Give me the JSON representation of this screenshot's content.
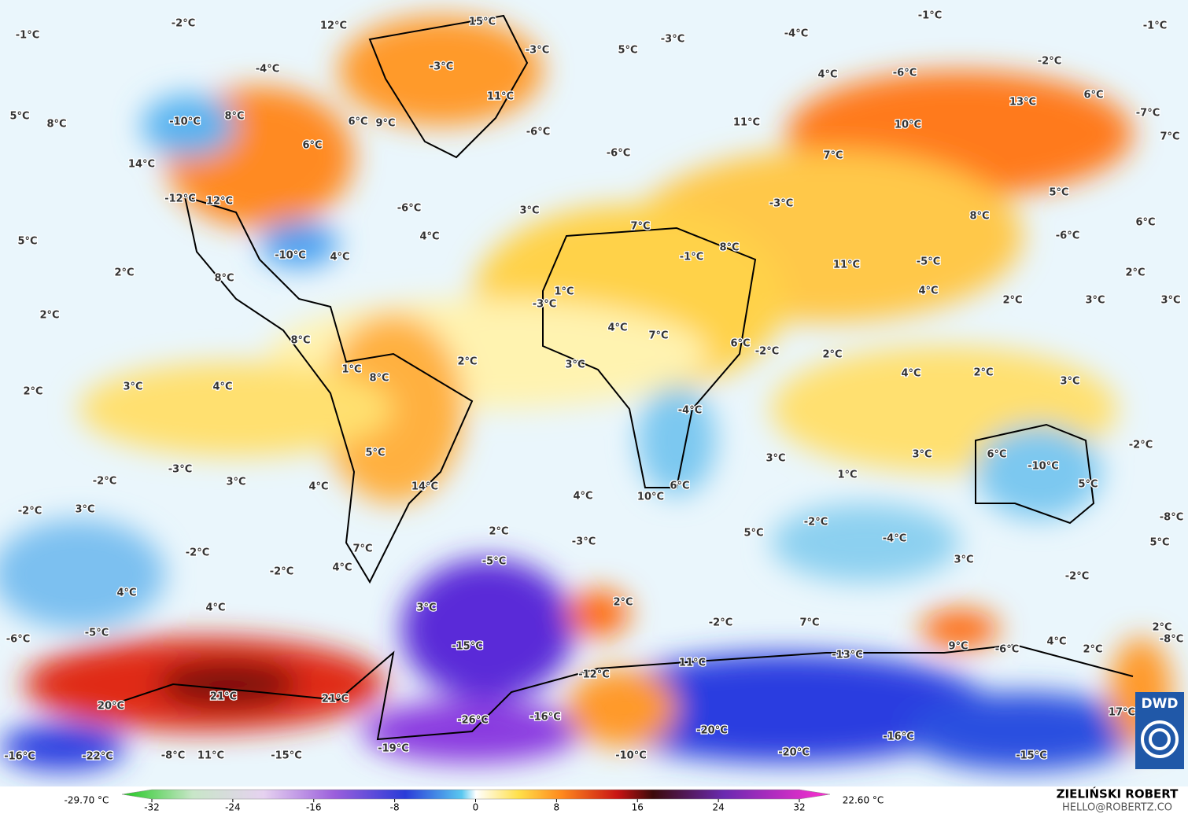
{
  "map": {
    "temperature_labels": [
      "-1°C",
      "-2°C",
      "12°C",
      "15°C",
      "-1°C",
      "-1°C",
      "-4°C",
      "-3°C",
      "-3°C",
      "5°C",
      "-3°C",
      "-4°C",
      "4°C",
      "-2°C",
      "-6°C",
      "5°C",
      "8°C",
      "-10°C",
      "8°C",
      "6°C",
      "9°C",
      "11°C",
      "-6°C",
      "11°C",
      "13°C",
      "6°C",
      "-7°C",
      "10°C",
      "7°C",
      "14°C",
      "6°C",
      "-6°C",
      "7°C",
      "-12°C",
      "12°C",
      "-6°C",
      "3°C",
      "-3°C",
      "5°C",
      "8°C",
      "6°C",
      "5°C",
      "4°C",
      "7°C",
      "8°C",
      "-10°C",
      "4°C",
      "-1°C",
      "-6°C",
      "-5°C",
      "11°C",
      "2°C",
      "8°C",
      "2°C",
      "1°C",
      "-3°C",
      "4°C",
      "2°C",
      "3°C",
      "3°C",
      "2°C",
      "4°C",
      "7°C",
      "6°C",
      "8°C",
      "-2°C",
      "2°C",
      "3°C",
      "1°C",
      "8°C",
      "2°C",
      "4°C",
      "2°C",
      "3°C",
      "2°C",
      "3°C",
      "4°C",
      "-4°C",
      "-2°C",
      "5°C",
      "6°C",
      "3°C",
      "3°C",
      "-2°C",
      "-3°C",
      "3°C",
      "4°C",
      "14°C",
      "1°C",
      "-10°C",
      "5°C",
      "6°C",
      "10°C",
      "4°C",
      "-2°C",
      "3°C",
      "-2°C",
      "-8°C",
      "2°C",
      "5°C",
      "-4°C",
      "-3°C",
      "5°C",
      "-2°C",
      "7°C",
      "-5°C",
      "3°C",
      "-2°C",
      "4°C",
      "-2°C",
      "4°C",
      "4°C",
      "3°C",
      "2°C",
      "-2°C",
      "7°C",
      "2°C",
      "-6°C",
      "-5°C",
      "9°C",
      "-6°C",
      "4°C",
      "2°C",
      "-8°C",
      "-15°C",
      "11°C",
      "-13°C",
      "-12°C",
      "21°C",
      "21°C",
      "20°C",
      "17°C",
      "-16°C",
      "-26°C",
      "-20°C",
      "-16°C",
      "-19°C",
      "-16°C",
      "-22°C",
      "-8°C",
      "11°C",
      "-15°C",
      "-10°C",
      "-20°C",
      "-15°C"
    ]
  },
  "legend": {
    "min_label": "-29.70 °C",
    "max_label": "22.60 °C",
    "range": [
      -32,
      32
    ],
    "ticks": [
      -32,
      -24,
      -16,
      -8,
      0,
      8,
      16,
      24,
      32
    ]
  },
  "credits": {
    "author": "ZIELIŃSKI ROBERT",
    "contact": "HELLO@ROBERTZ.CO",
    "logo": "DWD"
  }
}
